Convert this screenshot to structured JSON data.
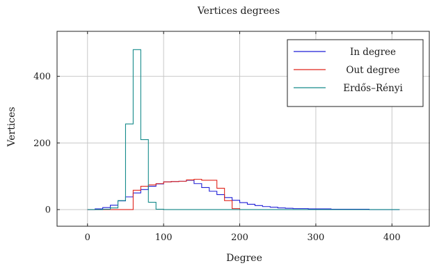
{
  "chart_data": {
    "type": "line",
    "step": true,
    "title": "Vertices degrees",
    "xlabel": "Degree",
    "ylabel": "Vertices",
    "xlim": [
      -40,
      450
    ],
    "ylim": [
      -50,
      535
    ],
    "xticks": [
      0,
      100,
      200,
      300,
      400
    ],
    "yticks": [
      0,
      200,
      400
    ],
    "grid": true,
    "legend_position": "top-right",
    "series": [
      {
        "name": "In degree",
        "color": "#1f1fd6",
        "x": [
          0,
          10,
          20,
          30,
          40,
          50,
          60,
          70,
          80,
          90,
          100,
          110,
          120,
          130,
          140,
          150,
          160,
          170,
          180,
          190,
          200,
          210,
          220,
          230,
          240,
          250,
          260,
          270,
          280,
          290,
          300,
          310,
          320,
          330,
          340,
          350,
          360,
          370,
          380,
          390,
          400,
          410
        ],
        "values": [
          0,
          2,
          6,
          13,
          26,
          38,
          50,
          60,
          70,
          77,
          83,
          84,
          85,
          88,
          78,
          66,
          55,
          45,
          36,
          28,
          21,
          16,
          12,
          9,
          7,
          5,
          4,
          3,
          3,
          2,
          2,
          2,
          1,
          1,
          1,
          1,
          1,
          0,
          0,
          0,
          0,
          0
        ]
      },
      {
        "name": "Out degree",
        "color": "#e0241b",
        "x": [
          0,
          10,
          20,
          30,
          40,
          50,
          60,
          70,
          80,
          90,
          100,
          110,
          120,
          130,
          140,
          150,
          160,
          170,
          180,
          190,
          200
        ],
        "values": [
          0,
          0,
          0,
          0,
          0,
          0,
          58,
          70,
          74,
          78,
          83,
          84,
          85,
          89,
          91,
          88,
          88,
          64,
          27,
          3,
          0
        ]
      },
      {
        "name": "Erdős–Rényi",
        "color": "#148a8a",
        "x": [
          0,
          10,
          20,
          30,
          40,
          50,
          60,
          70,
          80,
          90,
          100,
          200,
          300,
          400,
          410
        ],
        "values": [
          0,
          0,
          1,
          5,
          27,
          257,
          480,
          210,
          22,
          1,
          0,
          0,
          0,
          0,
          0
        ]
      }
    ]
  }
}
